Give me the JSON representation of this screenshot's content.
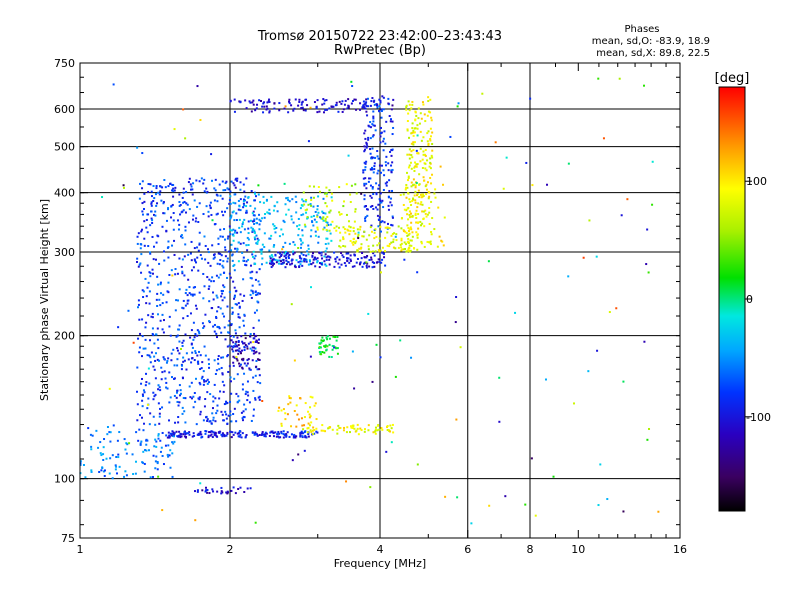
{
  "chart_data": {
    "type": "scatter",
    "title": "Tromsø 20150722 23:42:00–23:43:43",
    "subtitle": "RwPretec (Bp)",
    "xlabel": "Frequency [MHz]",
    "ylabel": "Stationary phase Virtual Height [km]",
    "x_scale": "log",
    "y_scale": "log",
    "xlim": [
      1,
      16
    ],
    "ylim": [
      75,
      750
    ],
    "x_ticks": [
      1,
      2,
      4,
      6,
      8,
      10,
      16
    ],
    "x_tick_labels": [
      "1",
      "2",
      "4",
      "6",
      "8",
      "10",
      "16"
    ],
    "x_gridlines": [
      2,
      4,
      6,
      8
    ],
    "y_ticks": [
      75,
      100,
      200,
      300,
      400,
      500,
      600,
      750
    ],
    "y_tick_labels": [
      "75",
      "100",
      "200",
      "300",
      "400",
      "500",
      "600",
      "750"
    ],
    "y_gridlines": [
      100,
      200,
      300,
      400,
      500,
      600
    ],
    "grid": true,
    "phases_box": {
      "title": "Phases",
      "line1": "mean, sd,O: -83.9, 18.9",
      "line2": "mean, sd,X: 89.8, 22.5"
    },
    "colorbar": {
      "label": "[deg]",
      "range": [
        -180,
        180
      ],
      "ticks": [
        100,
        0,
        -100
      ],
      "tick_labels": [
        "100",
        "0",
        "-100"
      ],
      "colormap": "rainbow"
    },
    "clusters": [
      {
        "desc": "low diffuse E echoes",
        "f": [
          1.0,
          1.55
        ],
        "h": [
          100,
          130
        ],
        "phase": -60,
        "n": 120
      },
      {
        "desc": "E-layer trace",
        "f": [
          1.5,
          3.0
        ],
        "h": [
          122,
          126
        ],
        "phase": -95,
        "n": 180
      },
      {
        "desc": "E trace tail (yellow)",
        "f": [
          2.8,
          4.3
        ],
        "h": [
          124,
          130
        ],
        "phase": 90,
        "n": 70
      },
      {
        "desc": "Es bump (yellow)",
        "f": [
          2.5,
          3.0
        ],
        "h": [
          128,
          150
        ],
        "phase": 110,
        "n": 40
      },
      {
        "desc": "F1 spread echoes",
        "f": [
          1.3,
          2.3
        ],
        "h": [
          130,
          430
        ],
        "phase": -80,
        "n": 900
      },
      {
        "desc": "F blob (cyan)",
        "f": [
          2.0,
          3.2
        ],
        "h": [
          280,
          400
        ],
        "phase": -40,
        "n": 250
      },
      {
        "desc": "F2 O-trace",
        "f": [
          2.4,
          4.1
        ],
        "h": [
          278,
          300
        ],
        "phase": -105,
        "n": 160
      },
      {
        "desc": "F2 O-trace cusp",
        "f": [
          3.7,
          4.25
        ],
        "h": [
          330,
          640
        ],
        "phase": -85,
        "n": 200
      },
      {
        "desc": "F2 X-trace",
        "f": [
          3.3,
          4.7
        ],
        "h": [
          300,
          340
        ],
        "phase": 85,
        "n": 120
      },
      {
        "desc": "F2 X-trace cusp",
        "f": [
          4.5,
          5.1
        ],
        "h": [
          340,
          640
        ],
        "phase": 90,
        "n": 180
      },
      {
        "desc": "F cluster yellow",
        "f": [
          4.4,
          5.4
        ],
        "h": [
          300,
          420
        ],
        "phase": 95,
        "n": 80
      },
      {
        "desc": "mid yellow-green",
        "f": [
          2.8,
          3.6
        ],
        "h": [
          330,
          420
        ],
        "phase": 70,
        "n": 60
      },
      {
        "desc": "green cluster",
        "f": [
          3.0,
          3.3
        ],
        "h": [
          180,
          200
        ],
        "phase": 20,
        "n": 40
      },
      {
        "desc": "multiple hop purple",
        "f": [
          2.0,
          4.3
        ],
        "h": [
          590,
          630
        ],
        "phase": -110,
        "n": 120
      },
      {
        "desc": "purple blob low",
        "f": [
          2.0,
          2.3
        ],
        "h": [
          170,
          200
        ],
        "phase": -125,
        "n": 60
      },
      {
        "desc": "low band 95 km",
        "f": [
          1.7,
          2.2
        ],
        "h": [
          93,
          96
        ],
        "phase": -110,
        "n": 30
      },
      {
        "desc": "scattered noise",
        "f": [
          1.1,
          14.5
        ],
        "h": [
          80,
          700
        ],
        "phase": 0,
        "n": 140
      }
    ]
  }
}
